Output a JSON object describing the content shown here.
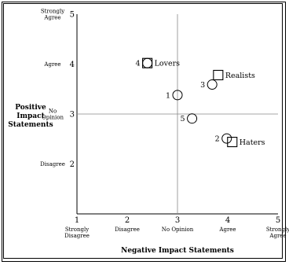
{
  "chart_data": {
    "type": "scatter",
    "title": "",
    "xlabel": "Negative Impact Statements",
    "ylabel": [
      "Positive",
      "Impact",
      "Statements"
    ],
    "xlim": [
      1,
      5
    ],
    "ylim": [
      1,
      5
    ],
    "reference_lines": {
      "x": 3,
      "y": 3
    },
    "grid": false,
    "x_ticks": [
      {
        "value": 1,
        "num": "1",
        "words": [
          "Strongly",
          "Disagree"
        ]
      },
      {
        "value": 2,
        "num": "2",
        "words": [
          "Disagree"
        ]
      },
      {
        "value": 3,
        "num": "3",
        "words": [
          "No Opinion"
        ]
      },
      {
        "value": 4,
        "num": "4",
        "words": [
          "Agree"
        ]
      },
      {
        "value": 5,
        "num": "5",
        "words": [
          "Strongly",
          "Agree"
        ]
      }
    ],
    "y_ticks": [
      {
        "value": 5,
        "num": "5",
        "words": [
          "Strongly",
          "Agree"
        ]
      },
      {
        "value": 4,
        "num": "4",
        "words": [
          "Agree"
        ]
      },
      {
        "value": 3,
        "num": "3",
        "words": [
          "No",
          "Opinion"
        ]
      },
      {
        "value": 2,
        "num": "2",
        "words": [
          "Disagree"
        ]
      }
    ],
    "points": [
      {
        "label": "1",
        "x": 3.0,
        "y": 3.38
      },
      {
        "label": "2",
        "x": 3.98,
        "y": 2.51
      },
      {
        "label": "3",
        "x": 3.69,
        "y": 3.59
      },
      {
        "label": "4",
        "x": 2.4,
        "y": 4.02
      },
      {
        "label": "5",
        "x": 3.29,
        "y": 2.91
      }
    ],
    "groups": [
      {
        "name": "Lovers",
        "x": 2.4,
        "y": 4.02
      },
      {
        "name": "Realists",
        "x": 3.81,
        "y": 3.78
      },
      {
        "name": "Haters",
        "x": 4.09,
        "y": 2.44
      }
    ]
  }
}
